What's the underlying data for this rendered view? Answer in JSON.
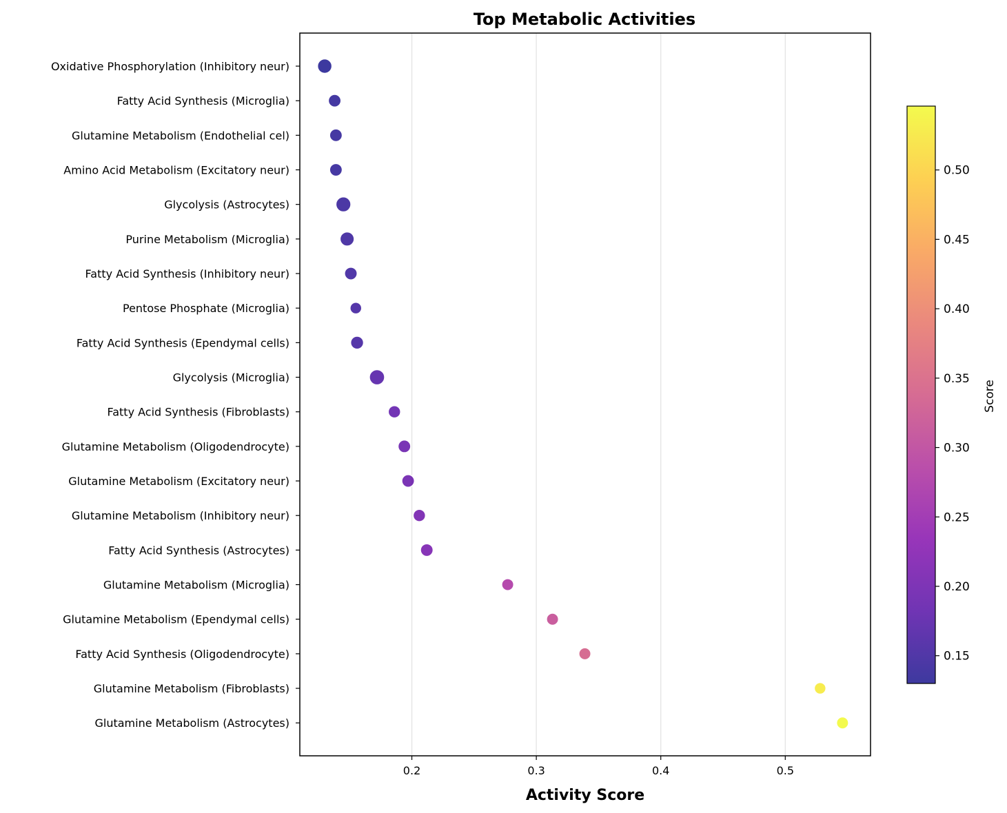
{
  "chart_data": {
    "type": "scatter",
    "title": "Top Metabolic Activities",
    "xlabel": "Activity Score",
    "ylabel": "",
    "xlim": [
      0.11,
      0.5685
    ],
    "x_ticks": [
      0.2,
      0.3,
      0.4,
      0.5
    ],
    "x_tick_labels": [
      "0.2",
      "0.3",
      "0.4",
      "0.5"
    ],
    "grid": "vertical",
    "colormap": "plasma",
    "categories": [
      "Oxidative Phosphorylation (Inhibitory neur)",
      "Fatty Acid Synthesis (Microglia)",
      "Glutamine Metabolism (Endothelial cel)",
      "Amino Acid Metabolism (Excitatory neur)",
      "Glycolysis (Astrocytes)",
      "Purine Metabolism (Microglia)",
      "Fatty Acid Synthesis (Inhibitory neur)",
      "Pentose Phosphate (Microglia)",
      "Fatty Acid Synthesis (Ependymal cells)",
      "Glycolysis (Microglia)",
      "Fatty Acid Synthesis (Fibroblasts)",
      "Glutamine Metabolism (Oligodendrocyte)",
      "Glutamine Metabolism (Excitatory neur)",
      "Glutamine Metabolism (Inhibitory neur)",
      "Fatty Acid Synthesis (Astrocytes)",
      "Glutamine Metabolism (Microglia)",
      "Glutamine Metabolism (Ependymal cells)",
      "Fatty Acid Synthesis (Oligodendrocyte)",
      "Glutamine Metabolism (Fibroblasts)",
      "Glutamine Metabolism (Astrocytes)"
    ],
    "values": [
      0.13,
      0.138,
      0.139,
      0.139,
      0.145,
      0.148,
      0.151,
      0.155,
      0.156,
      0.172,
      0.186,
      0.194,
      0.197,
      0.206,
      0.212,
      0.277,
      0.313,
      0.339,
      0.528,
      0.546
    ],
    "marker_sizes": [
      2.6,
      2.0,
      2.0,
      2.0,
      2.8,
      2.5,
      2.0,
      1.7,
      2.1,
      2.9,
      1.9,
      2.0,
      2.0,
      1.9,
      2.0,
      1.8,
      1.8,
      1.8,
      1.7,
      1.8
    ],
    "colorbar": {
      "label": "Score",
      "min": 0.13,
      "max": 0.546,
      "ticks": [
        0.15,
        0.2,
        0.25,
        0.3,
        0.35,
        0.4,
        0.45,
        0.5
      ],
      "tick_labels": [
        "0.15",
        "0.20",
        "0.25",
        "0.30",
        "0.35",
        "0.40",
        "0.45",
        "0.50"
      ]
    }
  }
}
